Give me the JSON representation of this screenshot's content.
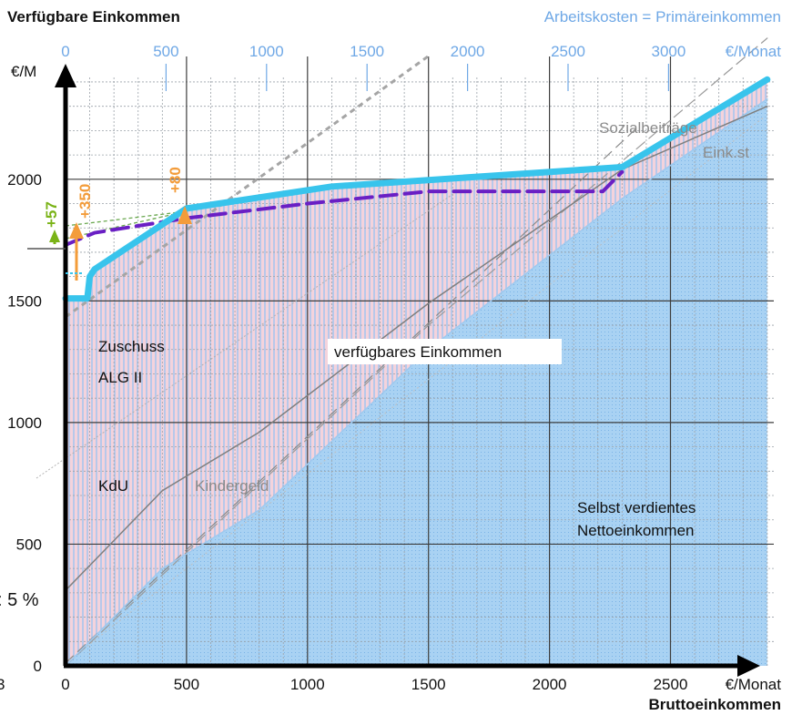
{
  "chart_data": {
    "type": "area",
    "title": "Verfügbare Einkommen",
    "top_axis": {
      "label": "Arbeitskosten = Primäreinkommen",
      "unit": "€/Monat",
      "ticks": [
        "0",
        "500",
        "1000",
        "1500",
        "2000",
        "2500",
        "3000"
      ]
    },
    "x_axis": {
      "label": "Bruttoeinkommen",
      "unit": "€/Monat",
      "ticks": [
        "0",
        "500",
        "1000",
        "1500",
        "2000",
        "2500"
      ],
      "range": [
        0,
        2900
      ]
    },
    "y_axis": {
      "unit": "€/M",
      "ticks": [
        "0",
        "500",
        "1000",
        "1500",
        "2000"
      ],
      "range": [
        0,
        2420
      ]
    },
    "grid": true,
    "series": [
      {
        "name": "verfügbares Einkommen",
        "color": "#38c4ec",
        "x": [
          0,
          90,
          100,
          120,
          500,
          1100,
          2300,
          2900
        ],
        "y": [
          1510,
          1510,
          1600,
          1630,
          1880,
          1970,
          2050,
          2410
        ]
      },
      {
        "color": "#6a1fc4",
        "dashed": true,
        "x": [
          0,
          120,
          500,
          1000,
          1500,
          2220,
          2300
        ],
        "y": [
          1730,
          1780,
          1840,
          1900,
          1950,
          1950,
          2030
        ]
      },
      {
        "name": "Selbst verdientes Nettoeinkommen",
        "color": "#9ec9ef",
        "x": [
          0,
          400,
          800,
          1500,
          2300,
          2900
        ],
        "y": [
          0,
          400,
          640,
          1300,
          1920,
          2330
        ]
      },
      {
        "color": "#7f7f7f",
        "x": [
          0,
          400,
          800,
          1500,
          2300,
          2900
        ],
        "y": [
          310,
          720,
          960,
          1490,
          2040,
          2300
        ]
      },
      {
        "color": "#9a9a9a",
        "dashed": true,
        "x": [
          0,
          1500,
          2900
        ],
        "y": [
          0,
          1400,
          2580
        ]
      }
    ],
    "annotations": [
      "Zuschuss",
      "ALG II",
      "KdU",
      "Kindergeld",
      "verfügbares Einkommen",
      "Sozialbeiträge",
      "Eink.st",
      "Selbst verdientes",
      "Nettoeinkommen",
      "+350",
      "+80",
      "+57",
      ": 5 %",
      "3"
    ]
  }
}
